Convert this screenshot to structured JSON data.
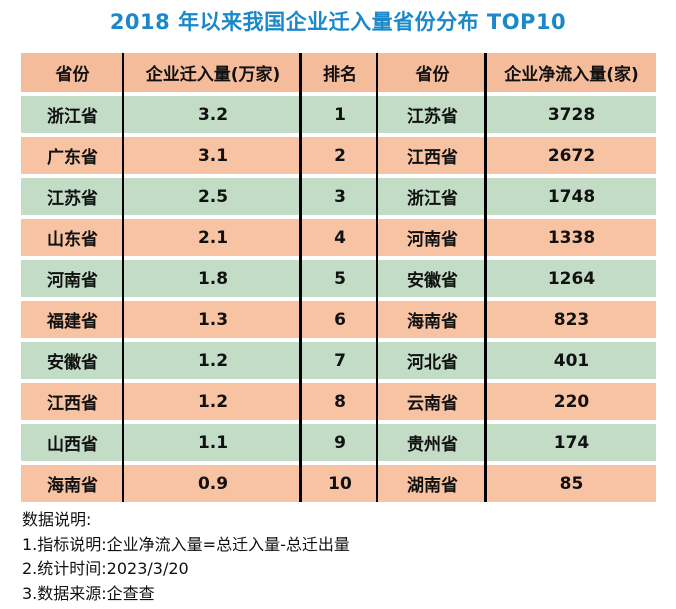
{
  "title": "2018 年以来我国企业迁入量省份分布 TOP10",
  "colors": {
    "title_blue": "#1b89c9",
    "header_bg": "#f5bc9c",
    "row_salmon": "#f8c3a3",
    "row_green": "#c2dcc6",
    "divider": "#000000"
  },
  "table": {
    "headers": [
      "省份",
      "企业迁入量(万家)",
      "排名",
      "省份",
      "企业净流入量(家)"
    ],
    "rows": [
      [
        "浙江省",
        "3.2",
        "1",
        "江苏省",
        "3728"
      ],
      [
        "广东省",
        "3.1",
        "2",
        "江西省",
        "2672"
      ],
      [
        "江苏省",
        "2.5",
        "3",
        "浙江省",
        "1748"
      ],
      [
        "山东省",
        "2.1",
        "4",
        "河南省",
        "1338"
      ],
      [
        "河南省",
        "1.8",
        "5",
        "安徽省",
        "1264"
      ],
      [
        "福建省",
        "1.3",
        "6",
        "海南省",
        "823"
      ],
      [
        "安徽省",
        "1.2",
        "7",
        "河北省",
        "401"
      ],
      [
        "江西省",
        "1.2",
        "8",
        "云南省",
        "220"
      ],
      [
        "山西省",
        "1.1",
        "9",
        "贵州省",
        "174"
      ],
      [
        "海南省",
        "0.9",
        "10",
        "湖南省",
        "85"
      ]
    ]
  },
  "notes": {
    "heading": "数据说明:",
    "items": [
      "1.指标说明:企业净流入量=总迁入量-总迁出量",
      "2.统计时间:2023/3/20",
      "3.数据来源:企查查"
    ]
  },
  "chart_data": {
    "type": "table",
    "title": "2018 年以来我国企业迁入量省份分布 TOP10",
    "columns": [
      "省份",
      "企业迁入量(万家)",
      "排名",
      "省份",
      "企业净流入量(家)"
    ],
    "series": [
      {
        "name": "企业迁入量(万家)",
        "categories": [
          "浙江省",
          "广东省",
          "江苏省",
          "山东省",
          "河南省",
          "福建省",
          "安徽省",
          "江西省",
          "山西省",
          "海南省"
        ],
        "values": [
          3.2,
          3.1,
          2.5,
          2.1,
          1.8,
          1.3,
          1.2,
          1.2,
          1.1,
          0.9
        ]
      },
      {
        "name": "企业净流入量(家)",
        "categories": [
          "江苏省",
          "江西省",
          "浙江省",
          "河南省",
          "安徽省",
          "海南省",
          "河北省",
          "云南省",
          "贵州省",
          "湖南省"
        ],
        "values": [
          3728,
          2672,
          1748,
          1338,
          1264,
          823,
          401,
          220,
          174,
          85
        ]
      }
    ],
    "rank": [
      1,
      2,
      3,
      4,
      5,
      6,
      7,
      8,
      9,
      10
    ],
    "legend_position": "none",
    "grid": "off",
    "notes": [
      "数据说明:",
      "1.指标说明:企业净流入量=总迁入量-总迁出量",
      "2.统计时间:2023/3/20",
      "3.数据来源:企查查"
    ]
  }
}
